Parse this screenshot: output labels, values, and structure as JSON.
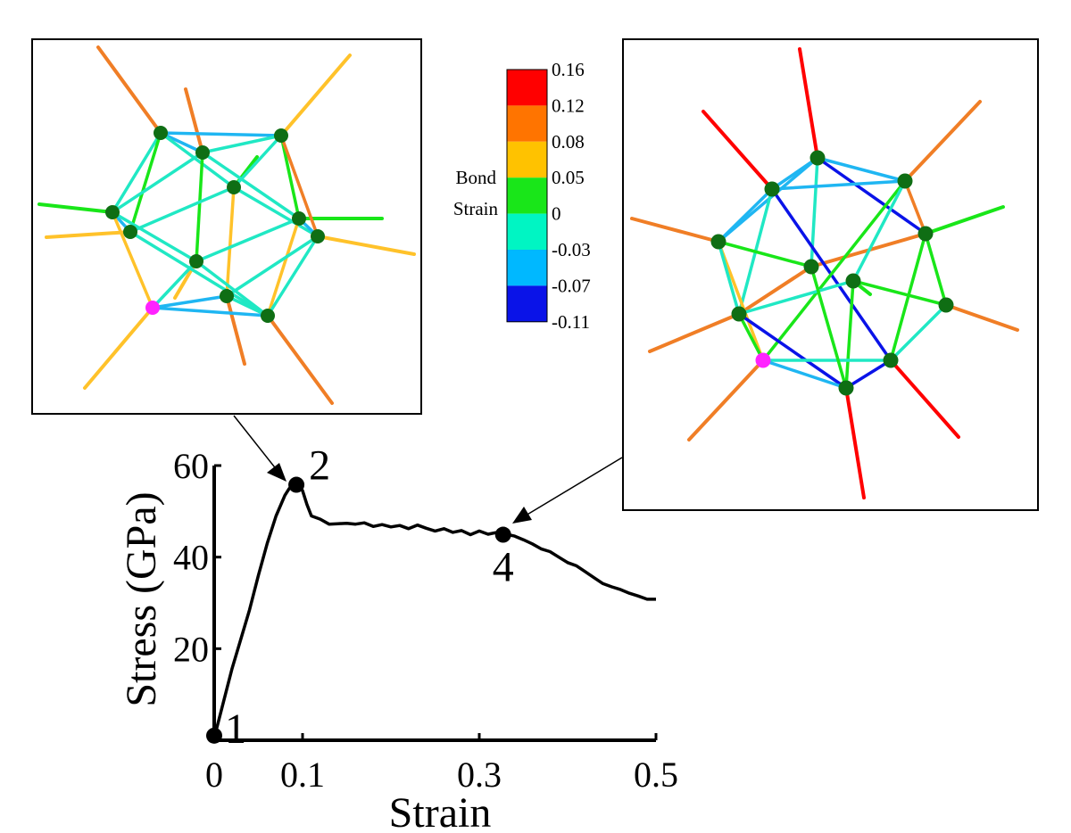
{
  "chart_data": {
    "type": "line",
    "xlabel": "Strain",
    "ylabel": "Stress (GPa)",
    "xlim": [
      0,
      0.5
    ],
    "ylim": [
      0,
      60
    ],
    "x_ticks": [
      "0",
      "0.1",
      "0.3",
      "0.5"
    ],
    "x_tick_values": [
      0,
      0.1,
      0.3,
      0.5
    ],
    "y_ticks": [
      "20",
      "40",
      "60"
    ],
    "y_tick_values": [
      20,
      40,
      60
    ],
    "x_minor_ticks": [
      0.1,
      0.3,
      0.5
    ],
    "series": [
      {
        "x": [
          0,
          0.01,
          0.02,
          0.03,
          0.04,
          0.05,
          0.06,
          0.07,
          0.08,
          0.085,
          0.09,
          0.095,
          0.1,
          0.105,
          0.11,
          0.12,
          0.13,
          0.14,
          0.15,
          0.16,
          0.17,
          0.18,
          0.19,
          0.2,
          0.21,
          0.22,
          0.23,
          0.24,
          0.25,
          0.26,
          0.27,
          0.28,
          0.29,
          0.3,
          0.31,
          0.32,
          0.33,
          0.34,
          0.35,
          0.36,
          0.37,
          0.38,
          0.39,
          0.4,
          0.41,
          0.42,
          0.43,
          0.44,
          0.45,
          0.46,
          0.47,
          0.48,
          0.49,
          0.5
        ],
        "y": [
          0.5,
          8,
          15.5,
          22,
          28.5,
          36,
          43,
          49,
          53.5,
          55,
          55.8,
          56,
          54.5,
          51.5,
          49,
          48.3,
          47.2,
          47.3,
          47.4,
          47.2,
          47.5,
          46.7,
          47.1,
          46.6,
          46.9,
          46.2,
          47.0,
          46.3,
          45.7,
          46.2,
          45.4,
          45.8,
          44.9,
          45.7,
          45.0,
          45.4,
          45.0,
          44.6,
          43.8,
          42.9,
          41.8,
          41.2,
          40.0,
          38.8,
          38.1,
          36.8,
          35.5,
          34.2,
          33.5,
          32.9,
          32.1,
          31.5,
          30.8,
          30.8
        ]
      }
    ],
    "points": [
      {
        "label": "1",
        "x": 0.0,
        "y": 1.0
      },
      {
        "label": "2",
        "x": 0.093,
        "y": 55.8
      },
      {
        "label": "4",
        "x": 0.327,
        "y": 44.9
      }
    ]
  },
  "colorbar": {
    "title_line1": "Bond",
    "title_line2": "Strain",
    "colors": [
      "#ff0000",
      "#ff7400",
      "#ffc200",
      "#19e619",
      "#00f5c3",
      "#00b8ff",
      "#0a13e8"
    ],
    "labels": [
      "0.16",
      "0.12",
      "0.08",
      "0.05",
      "0",
      "-0.03",
      "-0.07",
      "-0.11"
    ]
  }
}
